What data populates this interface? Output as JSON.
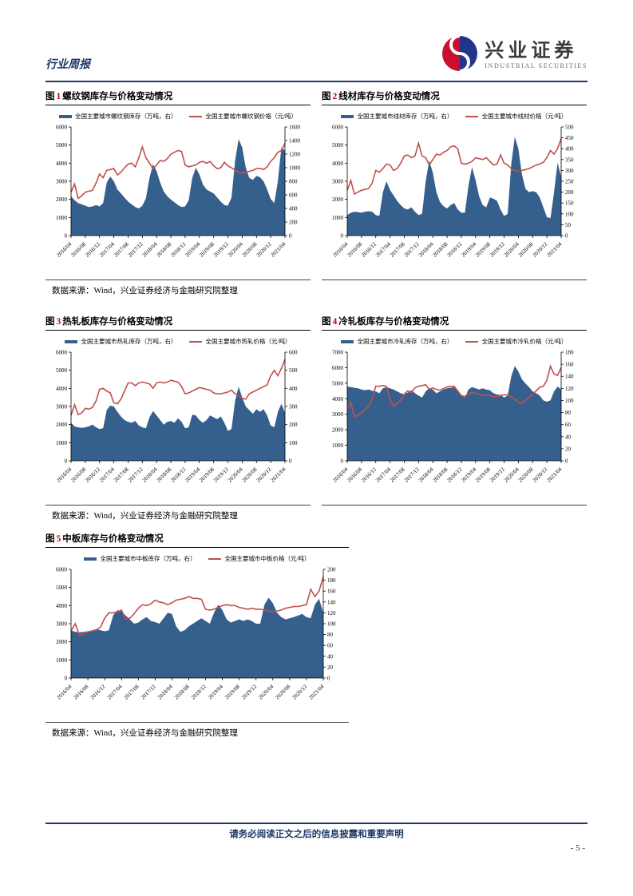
{
  "page": {
    "header_left": "行业周报",
    "brand_cn": "兴业证券",
    "brand_en": "INDUSTRIAL SECURITIES",
    "footer_notice": "请务必阅读正文之后的信息披露和重要声明",
    "page_number": "- 5 -"
  },
  "colors": {
    "navy": "#1f3864",
    "area_blue": "#35608e",
    "line_red": "#c0504d",
    "fig_number_red": "#c00000",
    "logo_red": "#c8102e",
    "logo_blue": "#25348b"
  },
  "source_note": "数据来源：Wind，兴业证券经济与金融研究院整理",
  "x_tick_labels": [
    "2016/04",
    "2016/08",
    "2016/12",
    "2017/04",
    "2017/08",
    "2017/12",
    "2018/04",
    "2018/08",
    "2018/12",
    "2019/04",
    "2019/08",
    "2019/12",
    "2020/04",
    "2020/08",
    "2020/12",
    "2021/04"
  ],
  "chart_data": [
    {
      "type": "area",
      "fig_word": "图",
      "fig_no": "1",
      "title": "螺纹钢库存与价格变动情况",
      "legend": [
        "全国主要城市螺纹钢库存（万吨，右）",
        "全国主要城市螺纹钢价格（元/吨）"
      ],
      "left_axis": {
        "min": 0,
        "max": 6000,
        "step": 1000
      },
      "right_axis": {
        "min": 0,
        "max": 1600,
        "step": 200
      },
      "series": [
        {
          "name": "库存",
          "axis": "right",
          "style": "area",
          "values": [
            580,
            520,
            480,
            460,
            440,
            420,
            430,
            450,
            430,
            480,
            780,
            870,
            800,
            680,
            620,
            560,
            500,
            460,
            420,
            400,
            440,
            550,
            850,
            1050,
            950,
            780,
            650,
            580,
            530,
            490,
            450,
            420,
            430,
            520,
            850,
            1000,
            900,
            750,
            680,
            650,
            620,
            560,
            500,
            450,
            440,
            560,
            1100,
            1420,
            1300,
            1000,
            850,
            820,
            880,
            860,
            800,
            680,
            540,
            480,
            800,
            1300,
            1250
          ]
        },
        {
          "name": "价格",
          "axis": "left",
          "style": "line",
          "values": [
            2400,
            2850,
            2050,
            2200,
            2400,
            2450,
            2500,
            2900,
            3400,
            3200,
            3600,
            3650,
            3700,
            3350,
            3500,
            3750,
            3950,
            4000,
            3800,
            4300,
            4900,
            4300,
            4000,
            3700,
            3900,
            4150,
            4100,
            4250,
            4500,
            4600,
            4700,
            4650,
            3900,
            3800,
            3850,
            3900,
            4050,
            4100,
            4000,
            4100,
            3850,
            3700,
            3750,
            4050,
            3850,
            3750,
            3600,
            3500,
            3450,
            3500,
            3550,
            3600,
            3700,
            3700,
            3650,
            3800,
            4100,
            4300,
            4600,
            4700,
            5100
          ]
        }
      ]
    },
    {
      "type": "area",
      "fig_word": "图",
      "fig_no": "2",
      "title": "线材库存与价格变动情况",
      "legend": [
        "全国主要城市线材库存（万吨，右）",
        "全国主要城市线材价格（元/吨）"
      ],
      "left_axis": {
        "min": 0,
        "max": 6000,
        "step": 1000
      },
      "right_axis": {
        "min": 0,
        "max": 500,
        "step": 50
      },
      "series": [
        {
          "name": "库存",
          "axis": "right",
          "style": "area",
          "values": [
            95,
            105,
            110,
            108,
            105,
            110,
            112,
            110,
            95,
            90,
            200,
            250,
            210,
            185,
            160,
            140,
            125,
            120,
            130,
            110,
            95,
            100,
            250,
            345,
            290,
            200,
            155,
            135,
            125,
            140,
            150,
            120,
            105,
            105,
            230,
            315,
            255,
            180,
            140,
            130,
            175,
            170,
            160,
            120,
            90,
            100,
            330,
            455,
            400,
            280,
            215,
            200,
            205,
            200,
            175,
            130,
            85,
            80,
            200,
            335,
            270
          ]
        },
        {
          "name": "价格",
          "axis": "left",
          "style": "line",
          "values": [
            2500,
            3050,
            2300,
            2400,
            2500,
            2550,
            2600,
            2900,
            3600,
            3500,
            3700,
            3950,
            3900,
            3600,
            3700,
            4000,
            4400,
            4450,
            4300,
            4400,
            5100,
            4400,
            4300,
            3900,
            4200,
            4500,
            4450,
            4600,
            4700,
            4900,
            4950,
            4800,
            4000,
            3950,
            4000,
            4100,
            4300,
            4250,
            4200,
            4300,
            4100,
            3900,
            3950,
            4450,
            4000,
            3900,
            3700,
            3600,
            3550,
            3600,
            3650,
            3700,
            3800,
            3900,
            3950,
            4050,
            4300,
            4700,
            4500,
            4800,
            5350
          ]
        }
      ]
    },
    {
      "type": "area",
      "fig_word": "图",
      "fig_no": "3",
      "title": "热轧板库存与价格变动情况",
      "legend": [
        "全国主要城市热轧库存（万吨，右）",
        "全国主要城市热轧价格（元/吨）"
      ],
      "left_axis": {
        "min": 0,
        "max": 6000,
        "step": 1000
      },
      "right_axis": {
        "min": 0,
        "max": 600,
        "step": 100
      },
      "series": [
        {
          "name": "库存",
          "axis": "right",
          "style": "area",
          "values": [
            210,
            190,
            185,
            182,
            185,
            190,
            200,
            185,
            175,
            180,
            280,
            305,
            300,
            270,
            245,
            225,
            215,
            210,
            220,
            195,
            185,
            180,
            240,
            275,
            250,
            225,
            200,
            215,
            220,
            210,
            235,
            215,
            180,
            185,
            255,
            250,
            225,
            210,
            225,
            250,
            240,
            230,
            245,
            210,
            165,
            175,
            330,
            410,
            350,
            300,
            280,
            260,
            285,
            270,
            285,
            250,
            195,
            185,
            270,
            315,
            265
          ]
        },
        {
          "name": "价格",
          "axis": "left",
          "style": "line",
          "values": [
            2500,
            3100,
            2550,
            2650,
            2900,
            2850,
            2950,
            3300,
            3950,
            4000,
            3850,
            3750,
            3200,
            3150,
            3400,
            3850,
            4300,
            4300,
            4150,
            4300,
            4350,
            4300,
            4250,
            4000,
            4300,
            4350,
            4300,
            4350,
            4450,
            4400,
            4350,
            4100,
            3700,
            3750,
            3850,
            3950,
            4050,
            4000,
            3950,
            3900,
            3750,
            3700,
            3700,
            3750,
            3800,
            3900,
            3700,
            3600,
            3450,
            3400,
            3700,
            3800,
            3900,
            4000,
            4100,
            4200,
            4700,
            5000,
            4700,
            5100,
            5600
          ]
        }
      ]
    },
    {
      "type": "area",
      "fig_word": "图",
      "fig_no": "4",
      "title": "冷轧板库存与价格变动情况",
      "legend": [
        "全国主要城市冷轧库存（万吨，右）",
        "全国主要城市冷轧价格（元/吨）"
      ],
      "left_axis": {
        "min": 0,
        "max": 7000,
        "step": 1000
      },
      "right_axis": {
        "min": 0,
        "max": 180,
        "step": 20
      },
      "series": [
        {
          "name": "库存",
          "axis": "right",
          "style": "area",
          "values": [
            123,
            122,
            121,
            120,
            118,
            117,
            118,
            116,
            115,
            112,
            120,
            122,
            120,
            118,
            115,
            112,
            110,
            113,
            117,
            112,
            108,
            105,
            115,
            120,
            118,
            112,
            115,
            118,
            120,
            121,
            122,
            115,
            108,
            105,
            118,
            122,
            120,
            118,
            120,
            118,
            117,
            112,
            110,
            109,
            105,
            108,
            140,
            157,
            148,
            135,
            128,
            122,
            115,
            112,
            108,
            100,
            98,
            100,
            115,
            123,
            118
          ]
        },
        {
          "name": "价格",
          "axis": "left",
          "style": "line",
          "values": [
            3350,
            3750,
            2850,
            2950,
            3100,
            3300,
            3500,
            4000,
            4800,
            4800,
            4850,
            4800,
            3900,
            3500,
            3700,
            3900,
            4300,
            4500,
            4400,
            4700,
            4800,
            4850,
            4900,
            4600,
            4700,
            4600,
            4550,
            4650,
            4750,
            4800,
            4800,
            4500,
            4200,
            4150,
            4300,
            4400,
            4350,
            4300,
            4200,
            4250,
            4200,
            4150,
            4150,
            4200,
            4250,
            4250,
            4100,
            4000,
            3750,
            3700,
            3900,
            4100,
            4300,
            4500,
            4750,
            4800,
            5200,
            6100,
            5600,
            5500,
            6000
          ]
        }
      ]
    },
    {
      "type": "area",
      "fig_word": "图",
      "fig_no": "5",
      "title": "中板库存与价格变动情况",
      "legend": [
        "全国主要城市中板库存（万吨，右）",
        "全国主要城市中板价格（元/吨）"
      ],
      "left_axis": {
        "min": 0,
        "max": 6000,
        "step": 1000
      },
      "right_axis": {
        "min": 0,
        "max": 200,
        "step": 20
      },
      "series": [
        {
          "name": "库存",
          "axis": "right",
          "style": "area",
          "values": [
            88,
            85,
            84,
            85,
            86,
            88,
            90,
            88,
            86,
            88,
            115,
            125,
            122,
            115,
            108,
            100,
            102,
            108,
            112,
            105,
            103,
            100,
            110,
            120,
            118,
            95,
            85,
            88,
            95,
            100,
            105,
            110,
            105,
            100,
            120,
            135,
            125,
            108,
            102,
            105,
            108,
            105,
            108,
            105,
            100,
            100,
            135,
            148,
            138,
            120,
            112,
            108,
            110,
            112,
            115,
            118,
            112,
            110,
            135,
            146,
            120
          ]
        },
        {
          "name": "价格",
          "axis": "left",
          "style": "line",
          "values": [
            2600,
            3000,
            2350,
            2450,
            2550,
            2600,
            2650,
            2800,
            3300,
            3600,
            3600,
            3650,
            3750,
            3250,
            3300,
            3550,
            3850,
            4050,
            4000,
            4100,
            4300,
            4200,
            4150,
            4050,
            4150,
            4300,
            4350,
            4400,
            4500,
            4400,
            4400,
            4350,
            3800,
            3750,
            3800,
            3900,
            4000,
            4050,
            4000,
            4000,
            3900,
            3850,
            3800,
            3850,
            3800,
            3800,
            3750,
            3700,
            3650,
            3700,
            3750,
            3850,
            3900,
            3950,
            3950,
            4000,
            4050,
            4900,
            4500,
            4800,
            5600
          ]
        }
      ]
    }
  ]
}
